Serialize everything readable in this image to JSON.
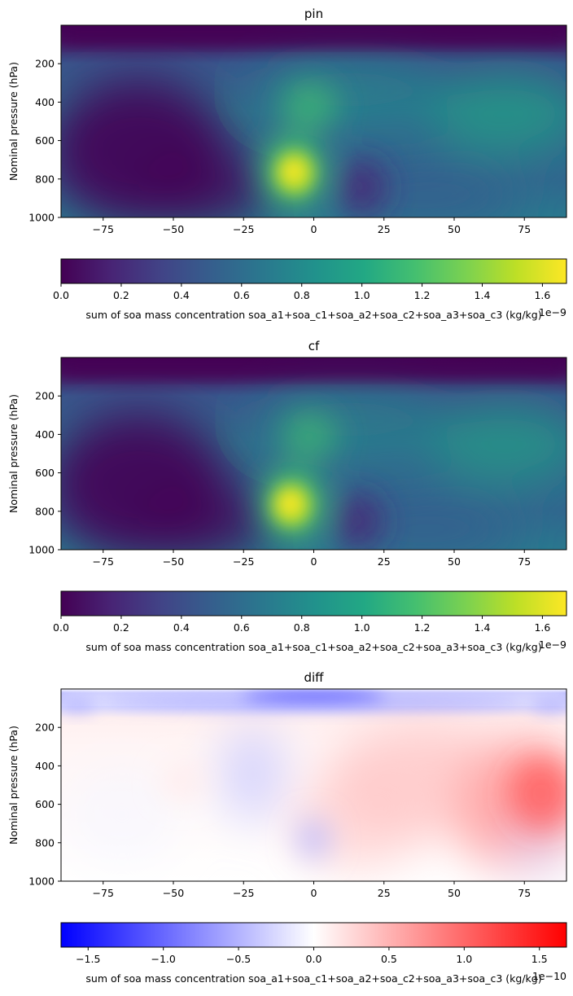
{
  "chart_data": [
    {
      "type": "heatmap",
      "title": "pin",
      "xlabel": "",
      "ylabel": "Nominal pressure (hPa)",
      "xlim": [
        -90,
        90
      ],
      "ylim": [
        1000,
        0
      ],
      "xticks": [
        -75,
        -50,
        -25,
        0,
        25,
        50,
        75
      ],
      "yticks": [
        200,
        400,
        600,
        800,
        1000
      ],
      "colormap": "viridis",
      "colorbar": {
        "label": "sum of soa mass concentration soa_a1+soa_c1+soa_a2+soa_c2+soa_a3+soa_c3 (kg/kg)",
        "min": 0.0,
        "max": 1.68,
        "ticks": [
          "0.0",
          "0.2",
          "0.4",
          "0.6",
          "0.8",
          "1.0",
          "1.2",
          "1.4",
          "1.6"
        ],
        "tick_values": [
          0.0,
          0.2,
          0.4,
          0.6,
          0.8,
          1.0,
          1.2,
          1.4,
          1.6
        ],
        "offset_text": "1e−9"
      }
    },
    {
      "type": "heatmap",
      "title": "cf",
      "xlabel": "",
      "ylabel": "Nominal pressure (hPa)",
      "xlim": [
        -90,
        90
      ],
      "ylim": [
        1000,
        0
      ],
      "xticks": [
        -75,
        -50,
        -25,
        0,
        25,
        50,
        75
      ],
      "yticks": [
        200,
        400,
        600,
        800,
        1000
      ],
      "colormap": "viridis",
      "colorbar": {
        "label": "sum of soa mass concentration soa_a1+soa_c1+soa_a2+soa_c2+soa_a3+soa_c3 (kg/kg)",
        "min": 0.0,
        "max": 1.68,
        "ticks": [
          "0.0",
          "0.2",
          "0.4",
          "0.6",
          "0.8",
          "1.0",
          "1.2",
          "1.4",
          "1.6"
        ],
        "tick_values": [
          0.0,
          0.2,
          0.4,
          0.6,
          0.8,
          1.0,
          1.2,
          1.4,
          1.6
        ],
        "offset_text": "1e−9"
      }
    },
    {
      "type": "heatmap",
      "title": "diff",
      "xlabel": "",
      "ylabel": "Nominal pressure (hPa)",
      "xlim": [
        -90,
        90
      ],
      "ylim": [
        1000,
        0
      ],
      "xticks": [
        -75,
        -50,
        -25,
        0,
        25,
        50,
        75
      ],
      "yticks": [
        200,
        400,
        600,
        800,
        1000
      ],
      "colormap": "bwr",
      "colorbar": {
        "label": "sum of soa mass concentration soa_a1+soa_c1+soa_a2+soa_c2+soa_a3+soa_c3 (kg/kg)",
        "min": -1.68,
        "max": 1.68,
        "ticks": [
          "−1.5",
          "−1.0",
          "−0.5",
          "0.0",
          "0.5",
          "1.0",
          "1.5"
        ],
        "tick_values": [
          -1.5,
          -1.0,
          -0.5,
          0.0,
          0.5,
          1.0,
          1.5
        ],
        "offset_text": "1e−10"
      }
    }
  ]
}
